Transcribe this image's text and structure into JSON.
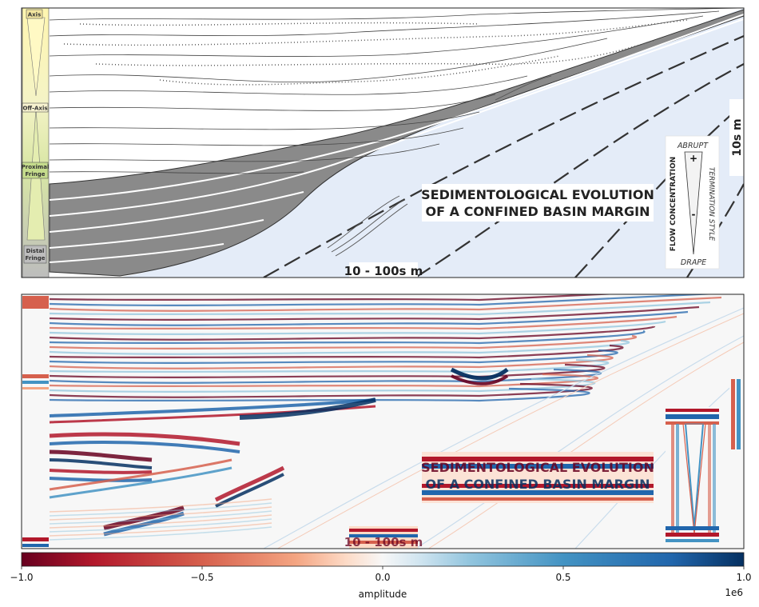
{
  "top_panel": {
    "title_line1": "SEDIMENTOLOGICAL EVOLUTION",
    "title_line2": "OF A CONFINED BASIN MARGIN",
    "scale_horizontal": "10 - 100s m",
    "scale_vertical": "10s m",
    "facies_bar": {
      "axis": "Axis",
      "off_axis": "Off-Axis",
      "proximal_line1": "Proximal",
      "proximal_line2": "Fringe",
      "distal_line1": "Distal",
      "distal_line2": "Fringe"
    },
    "legend_box": {
      "top": "ABRUPT",
      "bottom": "DRAPE",
      "left": "FLOW CONCENTRATION",
      "right": "TERMINATION STYLE",
      "plus": "+",
      "minus": "-"
    },
    "colors": {
      "basin_fill": "#e4ecf8",
      "bed_fill": "#8a8a8a",
      "bed_line": "#333333"
    }
  },
  "bottom_panel": {
    "title_line1": "SEDIMENTOLOGICAL EVOLUTION",
    "title_line2": "OF A CONFINED BASIN MARGIN",
    "scale_horizontal": "10 - 100s m",
    "colormap": "RdBu",
    "colors": {
      "negative": "#67001f",
      "mid": "#f7f7f7",
      "positive": "#053061"
    }
  },
  "colorbar": {
    "label": "amplitude",
    "exponent": "1e6",
    "ticks": [
      "−1.0",
      "−0.5",
      "0.0",
      "0.5",
      "1.0"
    ],
    "range": [
      -1.0,
      1.0
    ]
  }
}
